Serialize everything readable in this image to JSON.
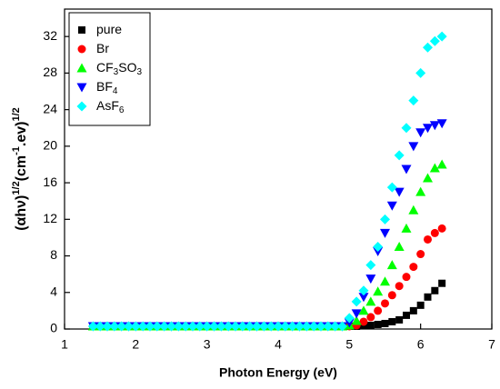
{
  "chart_data": {
    "type": "scatter",
    "x_label": "Photon Energy (eV)",
    "y_label": [
      "(αhν)",
      "1/2",
      "(cm",
      "-1",
      ".ev)",
      "1/2"
    ],
    "x": [
      1.4,
      1.5,
      1.6,
      1.7,
      1.8,
      1.9,
      2.0,
      2.1,
      2.2,
      2.3,
      2.4,
      2.5,
      2.6,
      2.7,
      2.8,
      2.9,
      3.0,
      3.1,
      3.2,
      3.3,
      3.4,
      3.5,
      3.6,
      3.7,
      3.8,
      3.9,
      4.0,
      4.1,
      4.2,
      4.3,
      4.4,
      4.5,
      4.6,
      4.7,
      4.8,
      4.9,
      5.0,
      5.1,
      5.2,
      5.3,
      5.4,
      5.5,
      5.6,
      5.7,
      5.8,
      5.9,
      6.0,
      6.1,
      6.2,
      6.3
    ],
    "series": [
      {
        "name": "pure",
        "color": "#000000",
        "marker": "square",
        "values": [
          0.3,
          0.3,
          0.3,
          0.3,
          0.3,
          0.3,
          0.3,
          0.3,
          0.3,
          0.3,
          0.3,
          0.3,
          0.3,
          0.3,
          0.3,
          0.3,
          0.3,
          0.3,
          0.3,
          0.3,
          0.3,
          0.3,
          0.3,
          0.3,
          0.3,
          0.3,
          0.3,
          0.3,
          0.3,
          0.3,
          0.3,
          0.3,
          0.3,
          0.3,
          0.3,
          0.3,
          0.3,
          0.3,
          0.4,
          0.4,
          0.5,
          0.6,
          0.8,
          1.0,
          1.5,
          2.0,
          2.6,
          3.5,
          4.2,
          5.0
        ]
      },
      {
        "name": "Br",
        "color": "#ff0000",
        "marker": "circle",
        "values": [
          0.3,
          0.3,
          0.3,
          0.3,
          0.3,
          0.3,
          0.3,
          0.3,
          0.3,
          0.3,
          0.3,
          0.3,
          0.3,
          0.3,
          0.3,
          0.3,
          0.3,
          0.3,
          0.3,
          0.3,
          0.3,
          0.3,
          0.3,
          0.3,
          0.3,
          0.3,
          0.3,
          0.3,
          0.3,
          0.3,
          0.3,
          0.3,
          0.3,
          0.3,
          0.3,
          0.3,
          0.3,
          0.4,
          0.8,
          1.3,
          2.0,
          2.8,
          3.7,
          4.7,
          5.7,
          6.8,
          8.2,
          9.8,
          10.5,
          11.0
        ]
      },
      {
        "name": "CF3SO3",
        "color": "#00ff00",
        "marker": "triangle-up",
        "values": [
          0.3,
          0.3,
          0.3,
          0.3,
          0.3,
          0.3,
          0.3,
          0.3,
          0.3,
          0.3,
          0.3,
          0.3,
          0.3,
          0.3,
          0.3,
          0.3,
          0.3,
          0.3,
          0.3,
          0.3,
          0.3,
          0.3,
          0.3,
          0.3,
          0.3,
          0.3,
          0.3,
          0.3,
          0.3,
          0.3,
          0.3,
          0.3,
          0.3,
          0.3,
          0.3,
          0.3,
          0.4,
          0.9,
          2.0,
          3.0,
          4.1,
          5.2,
          7.0,
          9.0,
          11.0,
          13.0,
          15.0,
          16.5,
          17.6,
          18.0
        ]
      },
      {
        "name": "BF4",
        "color": "#0000ff",
        "marker": "triangle-down",
        "values": [
          0.3,
          0.3,
          0.3,
          0.3,
          0.3,
          0.3,
          0.3,
          0.3,
          0.3,
          0.3,
          0.3,
          0.3,
          0.3,
          0.3,
          0.3,
          0.3,
          0.3,
          0.3,
          0.3,
          0.3,
          0.3,
          0.3,
          0.3,
          0.3,
          0.3,
          0.3,
          0.3,
          0.3,
          0.3,
          0.3,
          0.3,
          0.3,
          0.3,
          0.3,
          0.3,
          0.3,
          0.7,
          1.7,
          3.5,
          5.5,
          8.5,
          10.5,
          13.5,
          15.0,
          17.5,
          20.0,
          21.5,
          22.0,
          22.3,
          22.5
        ]
      },
      {
        "name": "AsF6",
        "color": "#00ffff",
        "marker": "diamond",
        "values": [
          0.3,
          0.3,
          0.3,
          0.3,
          0.3,
          0.3,
          0.3,
          0.3,
          0.3,
          0.3,
          0.3,
          0.3,
          0.3,
          0.3,
          0.3,
          0.3,
          0.3,
          0.3,
          0.3,
          0.3,
          0.3,
          0.3,
          0.3,
          0.3,
          0.3,
          0.3,
          0.3,
          0.3,
          0.3,
          0.3,
          0.3,
          0.3,
          0.3,
          0.3,
          0.3,
          0.3,
          1.2,
          3.0,
          4.2,
          7.0,
          9.0,
          12.0,
          15.5,
          19.0,
          22.0,
          25.0,
          28.0,
          30.8,
          31.5,
          32.0
        ]
      }
    ],
    "xlim": [
      1,
      7
    ],
    "xticks": [
      1,
      2,
      3,
      4,
      5,
      6,
      7
    ],
    "ylim": [
      0,
      35
    ],
    "yticks": [
      0,
      4,
      8,
      12,
      16,
      20,
      24,
      28,
      32
    ],
    "legend": "upper left"
  }
}
